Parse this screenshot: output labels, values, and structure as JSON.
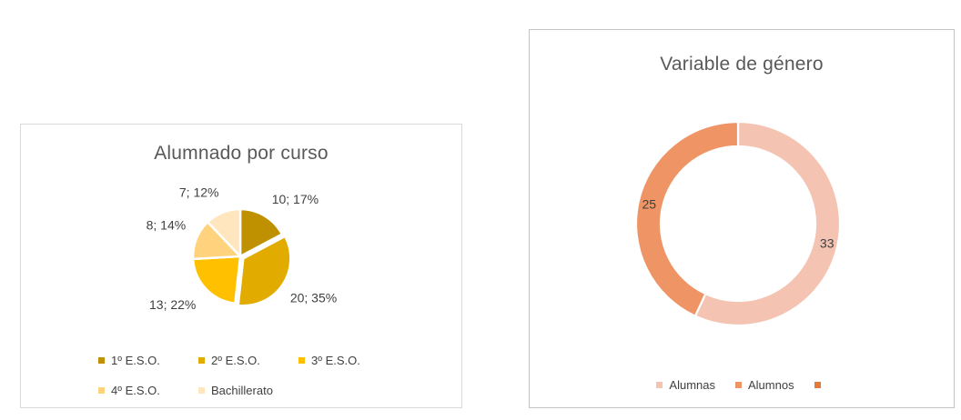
{
  "chart_data": [
    {
      "type": "pie",
      "title": "Alumnado por curso",
      "categories": [
        "1º E.S.O.",
        "2º E.S.O.",
        "3º E.S.O.",
        "4º E.S.O.",
        "Bachillerato"
      ],
      "values": [
        10,
        20,
        13,
        8,
        7
      ],
      "percent_labels": [
        "17%",
        "35%",
        "22%",
        "14%",
        "12%"
      ],
      "data_labels": [
        "10; 17%",
        "20; 35%",
        "13; 22%",
        "8; 14%",
        "7; 12%"
      ],
      "colors": [
        "#BF9000",
        "#E2AB00",
        "#FFC000",
        "#FFD37D",
        "#FFE6BE"
      ],
      "exploded_slice": "2º E.S.O.",
      "start_angle_deg": 0,
      "direction": "clockwise",
      "legend_position": "bottom",
      "legend_entries": [
        {
          "label": "1º E.S.O.",
          "color": "#BF9000"
        },
        {
          "label": "2º E.S.O.",
          "color": "#E2AB00"
        },
        {
          "label": "3º E.S.O.",
          "color": "#FFC000"
        },
        {
          "label": "4º E.S.O.",
          "color": "#FFD37D"
        },
        {
          "label": "Bachillerato",
          "color": "#FFE6BE"
        }
      ]
    },
    {
      "type": "pie",
      "subtype": "doughnut",
      "title": "Variable de género",
      "categories": [
        "Alumnas",
        "Alumnos"
      ],
      "values": [
        33,
        25
      ],
      "data_labels": [
        "33",
        "25"
      ],
      "colors": [
        "#F4C3B1",
        "#EF9565"
      ],
      "start_angle_deg": 0,
      "direction": "clockwise",
      "legend_position": "bottom",
      "legend_entries": [
        {
          "label": "Alumnas",
          "color": "#F4C3B1"
        },
        {
          "label": "Alumnos",
          "color": "#EF9565"
        },
        {
          "label": "",
          "color": "#E07B39"
        }
      ]
    }
  ],
  "styles": {
    "background": "#FFFFFF",
    "title_color": "#595959",
    "data_label_color": "#404040",
    "legend_text_color": "#404040",
    "card_border_left": "#D9D9D9",
    "card_border_right": "#C4C4C4",
    "slice_separator_color": "#FFFFFF"
  }
}
